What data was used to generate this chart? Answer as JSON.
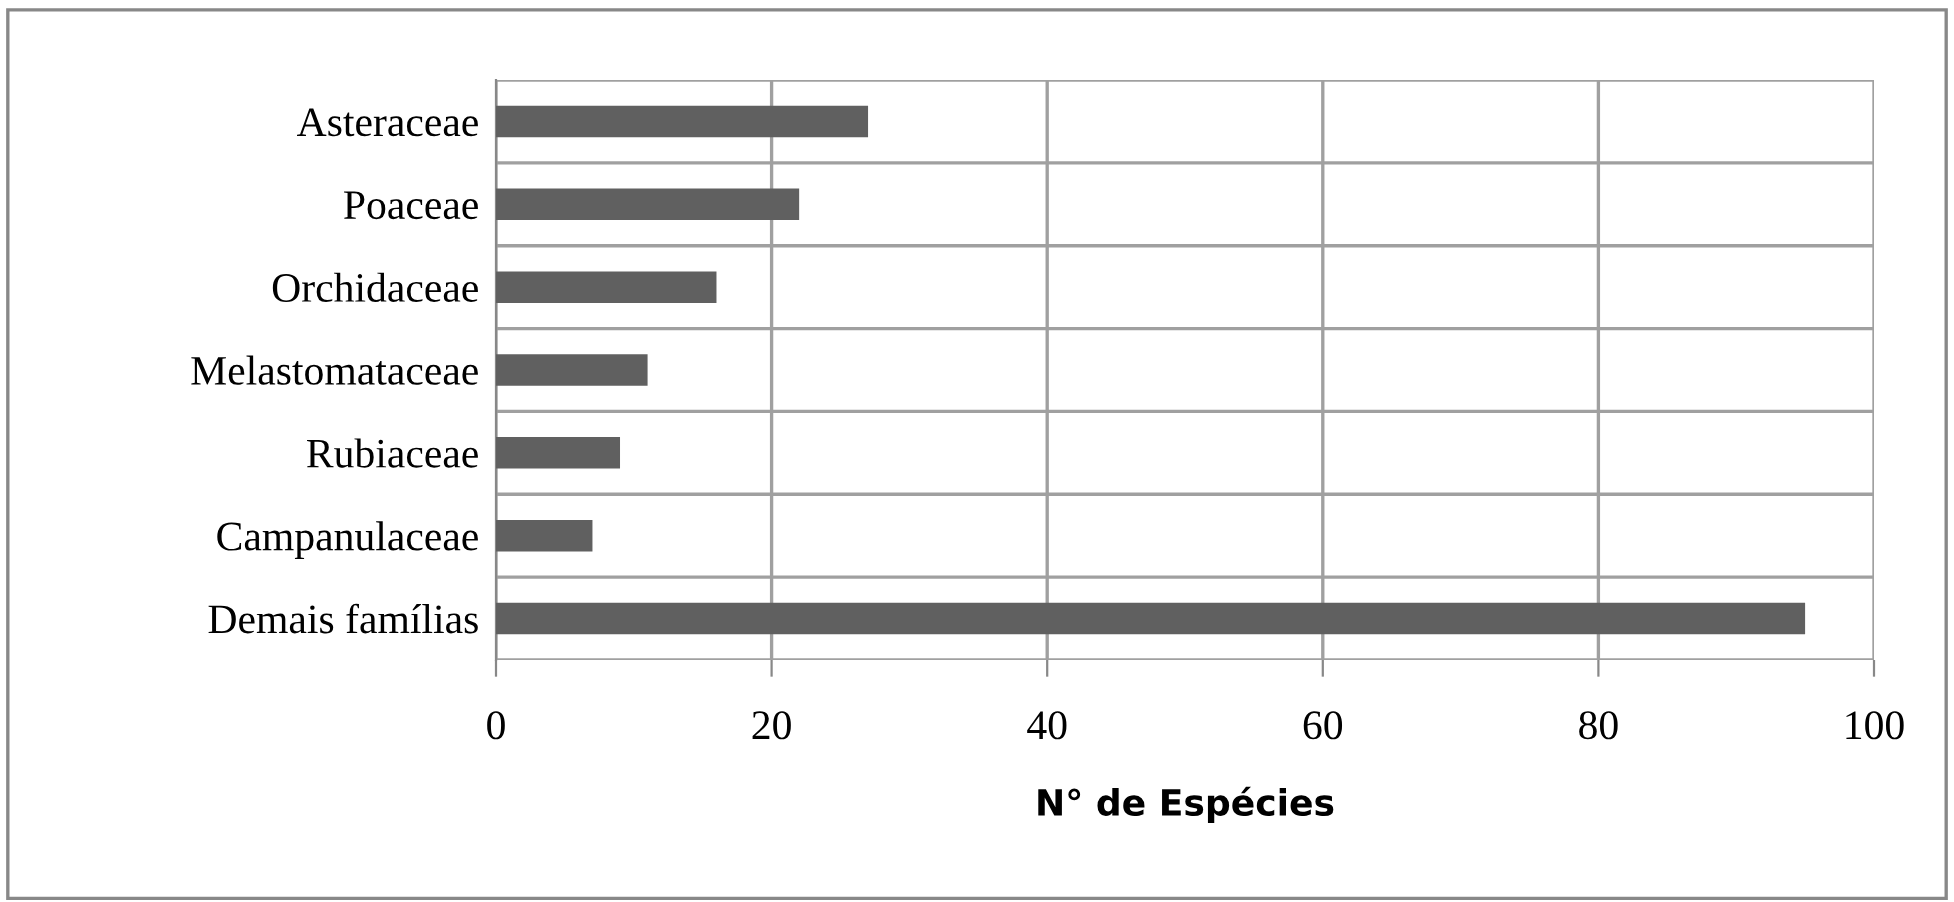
{
  "chart_data": {
    "type": "bar",
    "orientation": "horizontal",
    "xlabel": "N° de Espécies",
    "categories": [
      "Asteraceae",
      "Poaceae",
      "Orchidaceae",
      "Melastomataceae",
      "Rubiaceae",
      "Campanulaceae",
      "Demais famílias"
    ],
    "values": [
      27,
      22,
      16,
      11,
      9,
      7,
      95
    ],
    "color": "#606060",
    "xlim": [
      0,
      100
    ],
    "xticks": [
      0,
      20,
      40,
      60,
      80,
      100
    ],
    "grid": true
  }
}
